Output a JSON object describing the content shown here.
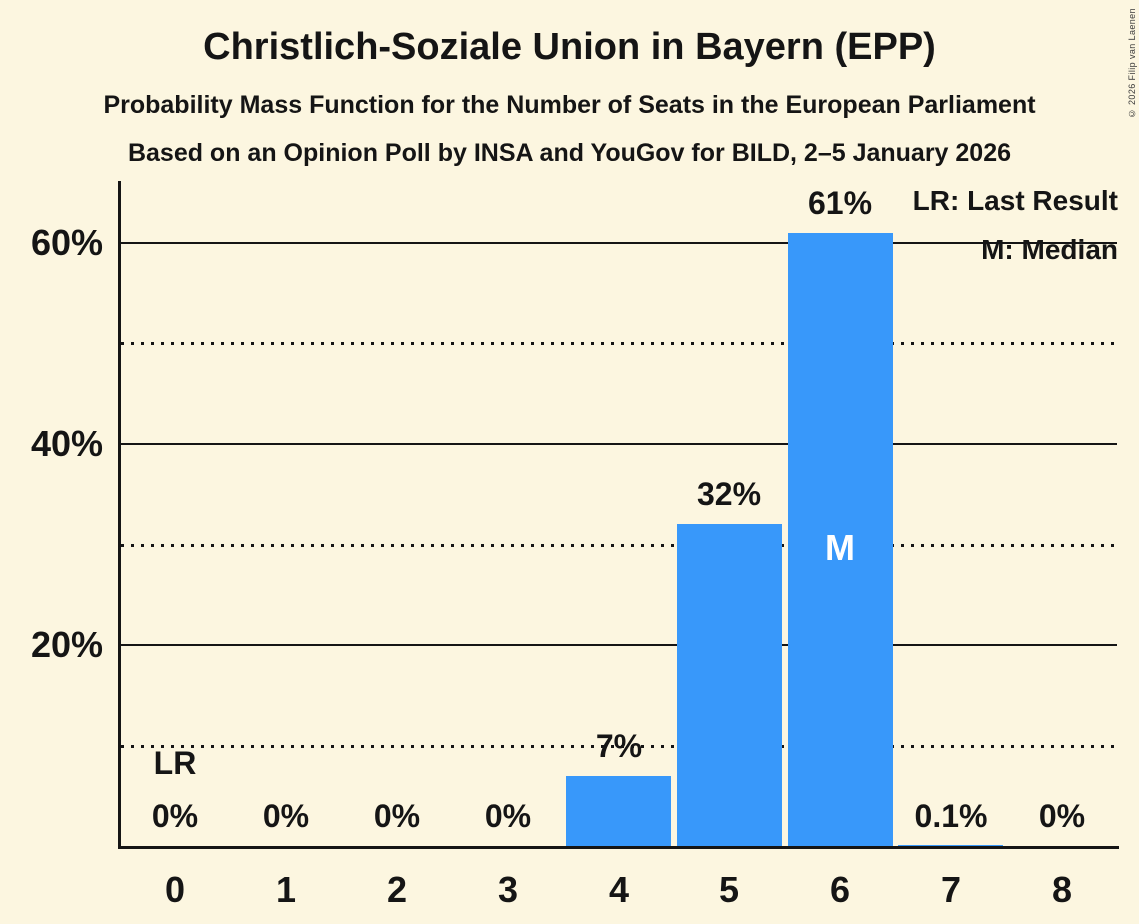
{
  "title": "Christlich-Soziale Union in Bayern (EPP)",
  "subtitle_line1": "Probability Mass Function for the Number of Seats in the European Parliament",
  "subtitle_line2": "Based on an Opinion Poll by INSA and YouGov for BILD, 2–5 January 2026",
  "copyright": "© 2026 Filip van Laenen",
  "legend": {
    "lr": "LR: Last Result",
    "m": "M: Median"
  },
  "colors": {
    "background": "#fcf6e0",
    "bar": "#3898fa",
    "text": "#151515",
    "median_text": "#ffffff"
  },
  "chart_data": {
    "type": "bar",
    "title": "Christlich-Soziale Union in Bayern (EPP)",
    "xlabel": "",
    "ylabel": "",
    "categories": [
      "0",
      "1",
      "2",
      "3",
      "4",
      "5",
      "6",
      "7",
      "8"
    ],
    "values": [
      0,
      0,
      0,
      0,
      7,
      32,
      61,
      0.1,
      0
    ],
    "value_labels": [
      "0%",
      "0%",
      "0%",
      "0%",
      "7%",
      "32%",
      "61%",
      "0.1%",
      "0%"
    ],
    "ylim": [
      0,
      66
    ],
    "yticks": [
      {
        "value": 20,
        "label": "20%"
      },
      {
        "value": 40,
        "label": "40%"
      },
      {
        "value": 60,
        "label": "60%"
      }
    ],
    "solid_gridlines_pct": [
      20,
      40,
      60
    ],
    "dotted_gridlines_pct": [
      10,
      30,
      50
    ],
    "grid": "horizontal",
    "legend_position": "top-right",
    "annotations": {
      "lr_seat": 0,
      "lr_label": "LR",
      "median_seat": 6,
      "median_label": "M"
    }
  }
}
